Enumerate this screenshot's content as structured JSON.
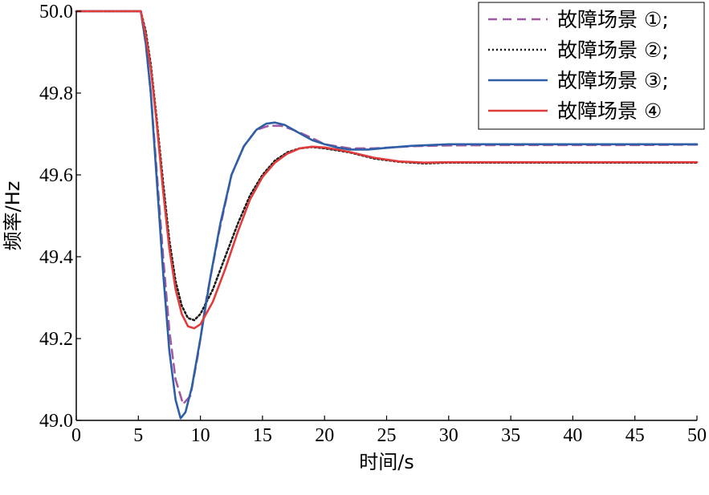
{
  "chart_data": {
    "type": "line",
    "title": "",
    "xlabel": "时间/s",
    "ylabel": "频率/Hz",
    "xlim": [
      0,
      50
    ],
    "ylim": [
      49.0,
      50.0
    ],
    "x_ticks": [
      "0",
      "5",
      "10",
      "15",
      "20",
      "25",
      "30",
      "35",
      "40",
      "45",
      "50"
    ],
    "y_ticks": [
      "49.0",
      "49.2",
      "49.4",
      "49.6",
      "49.8",
      "50.0"
    ],
    "grid": false,
    "legend_position": "top-right",
    "series": [
      {
        "name": "故障场景 ①;",
        "color": "#a05aa0",
        "style": "dashed",
        "points": [
          [
            0,
            50.0
          ],
          [
            5.2,
            50.0
          ],
          [
            5.6,
            49.92
          ],
          [
            6.0,
            49.8
          ],
          [
            6.5,
            49.6
          ],
          [
            7.0,
            49.4
          ],
          [
            7.5,
            49.22
          ],
          [
            8.0,
            49.1
          ],
          [
            8.6,
            49.04
          ],
          [
            9.2,
            49.06
          ],
          [
            9.8,
            49.16
          ],
          [
            10.5,
            49.3
          ],
          [
            11.5,
            49.46
          ],
          [
            12.5,
            49.6
          ],
          [
            13.5,
            49.67
          ],
          [
            14.5,
            49.71
          ],
          [
            15.5,
            49.72
          ],
          [
            16.5,
            49.72
          ],
          [
            17.5,
            49.71
          ],
          [
            19,
            49.69
          ],
          [
            20,
            49.675
          ],
          [
            22,
            49.665
          ],
          [
            24,
            49.665
          ],
          [
            27,
            49.67
          ],
          [
            30,
            49.672
          ],
          [
            35,
            49.673
          ],
          [
            40,
            49.673
          ],
          [
            45,
            49.673
          ],
          [
            50,
            49.674
          ]
        ]
      },
      {
        "name": "故障场景 ②;",
        "color": "#1a1a1a",
        "style": "dotted",
        "points": [
          [
            0,
            50.0
          ],
          [
            5.2,
            50.0
          ],
          [
            5.6,
            49.95
          ],
          [
            6.0,
            49.87
          ],
          [
            6.5,
            49.73
          ],
          [
            7.0,
            49.58
          ],
          [
            7.5,
            49.44
          ],
          [
            8.0,
            49.34
          ],
          [
            8.5,
            49.28
          ],
          [
            9.0,
            49.25
          ],
          [
            9.5,
            49.245
          ],
          [
            10.0,
            49.26
          ],
          [
            11,
            49.32
          ],
          [
            12,
            49.4
          ],
          [
            13,
            49.48
          ],
          [
            14,
            49.55
          ],
          [
            15,
            49.6
          ],
          [
            16,
            49.635
          ],
          [
            17,
            49.655
          ],
          [
            18,
            49.665
          ],
          [
            19,
            49.668
          ],
          [
            20,
            49.665
          ],
          [
            21,
            49.66
          ],
          [
            22,
            49.655
          ],
          [
            24,
            49.64
          ],
          [
            26,
            49.632
          ],
          [
            28,
            49.628
          ],
          [
            30,
            49.63
          ],
          [
            35,
            49.63
          ],
          [
            40,
            49.63
          ],
          [
            45,
            49.63
          ],
          [
            50,
            49.63
          ]
        ]
      },
      {
        "name": "故障场景 ③;",
        "color": "#2e5fa6",
        "style": "solid",
        "points": [
          [
            0,
            50.0
          ],
          [
            5.2,
            50.0
          ],
          [
            5.6,
            49.92
          ],
          [
            6.0,
            49.8
          ],
          [
            6.5,
            49.58
          ],
          [
            7.0,
            49.36
          ],
          [
            7.5,
            49.17
          ],
          [
            8.0,
            49.05
          ],
          [
            8.4,
            49.005
          ],
          [
            8.8,
            49.02
          ],
          [
            9.3,
            49.08
          ],
          [
            10,
            49.2
          ],
          [
            10.8,
            49.35
          ],
          [
            11.6,
            49.48
          ],
          [
            12.5,
            49.6
          ],
          [
            13.5,
            49.67
          ],
          [
            14.5,
            49.71
          ],
          [
            15.3,
            49.725
          ],
          [
            16.0,
            49.728
          ],
          [
            16.8,
            49.722
          ],
          [
            17.8,
            49.705
          ],
          [
            19,
            49.685
          ],
          [
            20,
            49.675
          ],
          [
            21,
            49.667
          ],
          [
            22,
            49.662
          ],
          [
            23.5,
            49.662
          ],
          [
            25,
            49.666
          ],
          [
            27,
            49.671
          ],
          [
            30,
            49.675
          ],
          [
            35,
            49.675
          ],
          [
            40,
            49.675
          ],
          [
            45,
            49.675
          ],
          [
            50,
            49.675
          ]
        ]
      },
      {
        "name": "故障场景 ④",
        "color": "#e03c3c",
        "style": "solid",
        "points": [
          [
            0,
            50.0
          ],
          [
            5.2,
            50.0
          ],
          [
            5.6,
            49.94
          ],
          [
            6.0,
            49.86
          ],
          [
            6.5,
            49.72
          ],
          [
            7.0,
            49.56
          ],
          [
            7.5,
            49.42
          ],
          [
            8.0,
            49.32
          ],
          [
            8.5,
            49.26
          ],
          [
            9.0,
            49.23
          ],
          [
            9.5,
            49.225
          ],
          [
            10.0,
            49.235
          ],
          [
            11,
            49.29
          ],
          [
            12,
            49.37
          ],
          [
            13,
            49.46
          ],
          [
            14,
            49.54
          ],
          [
            15,
            49.595
          ],
          [
            16,
            49.63
          ],
          [
            17,
            49.652
          ],
          [
            18,
            49.665
          ],
          [
            19,
            49.669
          ],
          [
            20,
            49.667
          ],
          [
            21,
            49.662
          ],
          [
            22,
            49.656
          ],
          [
            24,
            49.642
          ],
          [
            26,
            49.633
          ],
          [
            28,
            49.63
          ],
          [
            30,
            49.631
          ],
          [
            35,
            49.631
          ],
          [
            40,
            49.631
          ],
          [
            45,
            49.631
          ],
          [
            50,
            49.631
          ]
        ]
      }
    ]
  }
}
